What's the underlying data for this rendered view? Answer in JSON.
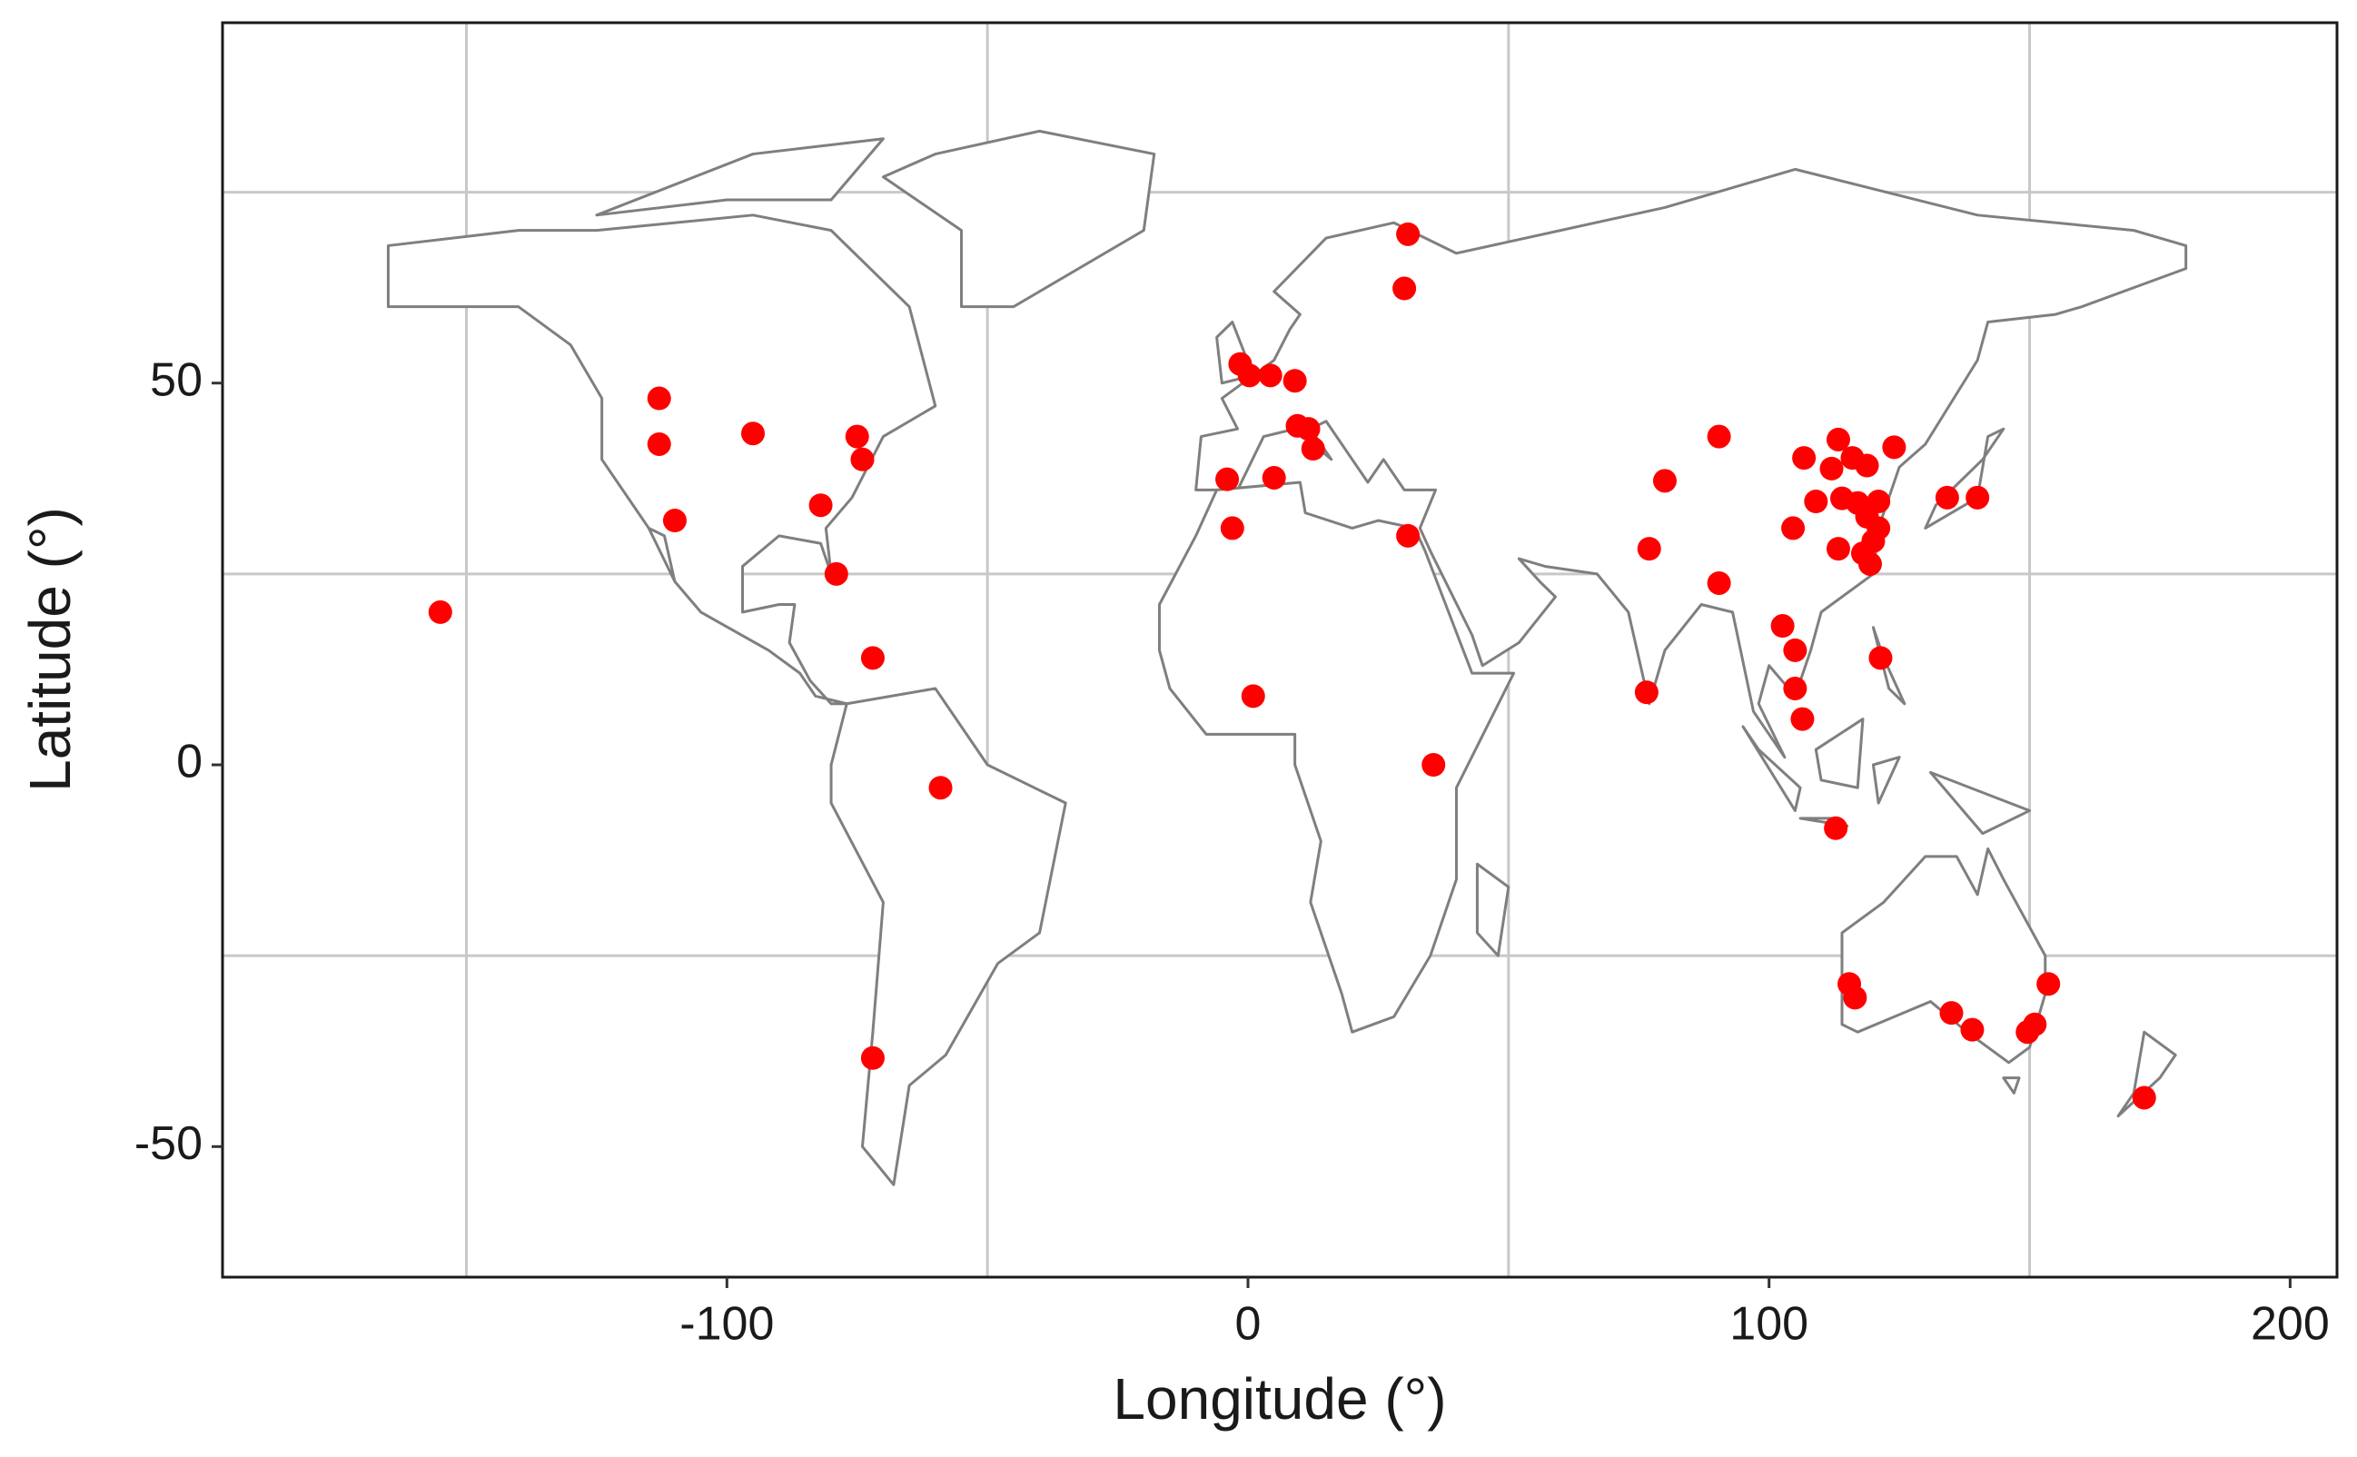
{
  "chart_data": {
    "type": "scatter",
    "xlabel": "Longitude (°)",
    "ylabel": "Latitude (°)",
    "xlim": [
      -196.8,
      209
    ],
    "ylim": [
      -67.1,
      97.2
    ],
    "xticks": [
      -100,
      0,
      100,
      200
    ],
    "yticks": [
      -50,
      0,
      50
    ],
    "x_gridlines": [
      -150,
      -50,
      50,
      150
    ],
    "y_gridlines": [
      -25,
      25,
      75
    ],
    "color": "#ff0000",
    "x": [
      -155,
      -113,
      -113,
      -110,
      -95,
      -82,
      -75,
      -74,
      -79,
      -72,
      -59,
      -72,
      -4,
      -3,
      1,
      -1.5,
      0.3,
      4.3,
      9,
      9.5,
      11.6,
      12.5,
      5,
      30.7,
      30,
      30.7,
      35.6,
      77,
      80,
      76.5,
      90.4,
      90.4,
      104.6,
      106.7,
      102.6,
      105,
      105,
      106.4,
      112.8,
      113.3,
      112,
      116,
      118.8,
      124,
      109,
      114,
      117,
      121,
      121,
      113.3,
      118,
      120,
      119.4,
      121.4,
      134.2,
      140,
      115.4,
      116.5,
      135,
      139,
      149.6,
      151,
      153.6,
      172,
      118.8
    ],
    "values": [
      20,
      48,
      42,
      32,
      43.4,
      34,
      43,
      40,
      25,
      14,
      -3,
      -38.4,
      37.4,
      31,
      9,
      52.5,
      51,
      51,
      50.3,
      44.4,
      44,
      41.4,
      37.6,
      69.5,
      62.4,
      30,
      0,
      28.3,
      37.2,
      9.5,
      43,
      23.8,
      31,
      40.2,
      18.2,
      15,
      10,
      6,
      -8.3,
      42.6,
      38.8,
      40.2,
      39.2,
      41.6,
      34.5,
      34.9,
      34.3,
      34.5,
      31,
      28.3,
      27.7,
      29.3,
      26.3,
      14,
      35,
      35,
      -28.7,
      -30.5,
      -32.5,
      -34.7,
      -35,
      -34,
      -28.7,
      -43.6,
      32.5
    ]
  }
}
